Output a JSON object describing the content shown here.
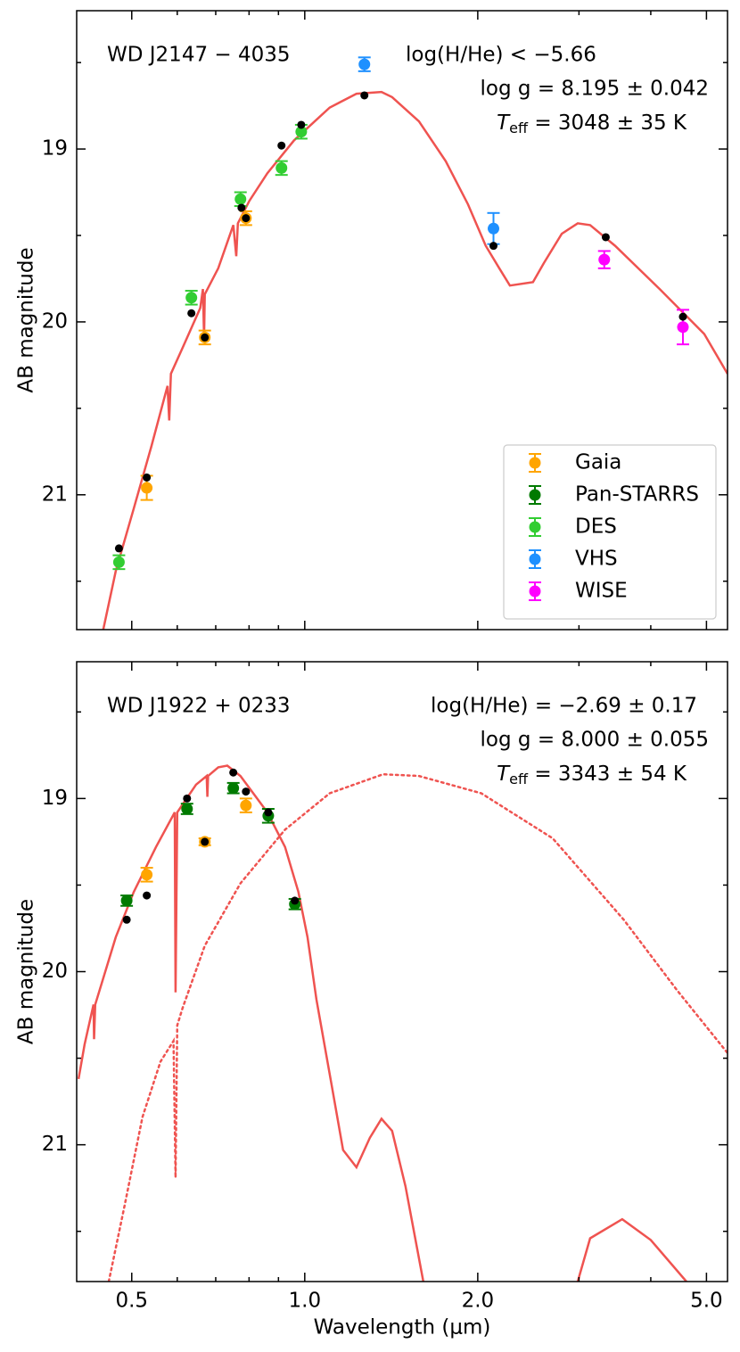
{
  "chart_data": [
    {
      "type": "scatter",
      "ylabel": "AB magnitude",
      "log_x": true,
      "xlim": [
        0.401,
        5.44
      ],
      "ylim": [
        21.78,
        18.2
      ],
      "xticks": [
        0.5,
        1,
        2,
        5
      ],
      "show_xtick_labels": false,
      "xminorticks": [
        0.6,
        0.7,
        0.8,
        0.9,
        3,
        4
      ],
      "yticks": [
        19,
        20,
        21
      ],
      "yminorticks": [
        18.5,
        19.5,
        20.5,
        21.5
      ],
      "annotations": {
        "name": "WD J2147 − 4035",
        "hhe": "log(H/He) < −5.66",
        "logg": "log g = 8.195 ± 0.042",
        "teff": {
          "symbol": "T",
          "subscript": "eff",
          "text": " = 3048 ± 35 K"
        }
      },
      "legend": "lower right",
      "series": [
        {
          "name": "Gaia",
          "color": "#ffa500",
          "x": [
            0.531,
            0.67,
            0.79
          ],
          "values": [
            20.96,
            20.09,
            19.4
          ],
          "errors": [
            0.07,
            0.04,
            0.04
          ]
        },
        {
          "name": "Pan-STARRS",
          "color": "#007a00",
          "x": [],
          "values": [],
          "errors": []
        },
        {
          "name": "DES",
          "color": "#32cd32",
          "x": [
            0.475,
            0.635,
            0.773,
            0.911,
            0.986
          ],
          "values": [
            21.39,
            19.86,
            19.29,
            19.11,
            18.9
          ],
          "errors": [
            0.04,
            0.04,
            0.04,
            0.04,
            0.04
          ]
        },
        {
          "name": "VHS",
          "color": "#1e90ff",
          "x": [
            1.27,
            2.13
          ],
          "values": [
            18.51,
            19.46
          ],
          "errors": [
            0.04,
            0.09
          ]
        },
        {
          "name": "WISE",
          "color": "#ff00ff",
          "x": [
            3.32,
            4.55
          ],
          "values": [
            19.64,
            20.03
          ],
          "errors": [
            0.05,
            0.1
          ]
        }
      ],
      "model_points": {
        "color": "#000000",
        "x": [
          0.475,
          0.531,
          0.635,
          0.67,
          0.776,
          0.79,
          0.911,
          0.986,
          1.27,
          2.13,
          3.34,
          4.55
        ],
        "values": [
          21.31,
          20.9,
          19.95,
          20.09,
          19.34,
          19.4,
          18.98,
          18.86,
          18.69,
          19.56,
          19.51,
          19.97
        ]
      },
      "model_curves": [
        {
          "color": "#ef5350",
          "style": "solid",
          "x": [
            0.446,
            0.469,
            0.504,
            0.541,
            0.577,
            0.581,
            0.585,
            0.613,
            0.658,
            0.665,
            0.668,
            0.67,
            0.707,
            0.751,
            0.76,
            0.765,
            0.801,
            0.861,
            0.958,
            1.105,
            1.23,
            1.36,
            1.419,
            1.58,
            1.759,
            1.923,
            2.065,
            2.18,
            2.275,
            2.495,
            2.606,
            2.8,
            2.985,
            3.137,
            3.467,
            4.145,
            4.955,
            5.44
          ],
          "values": [
            21.78,
            21.44,
            21.08,
            20.72,
            20.37,
            20.57,
            20.3,
            20.15,
            19.92,
            19.81,
            20.09,
            19.84,
            19.69,
            19.44,
            19.62,
            19.43,
            19.3,
            19.14,
            18.95,
            18.76,
            18.68,
            18.67,
            18.7,
            18.84,
            19.07,
            19.32,
            19.56,
            19.69,
            19.79,
            19.77,
            19.66,
            19.49,
            19.43,
            19.44,
            19.56,
            19.81,
            20.07,
            20.3
          ]
        }
      ]
    },
    {
      "type": "scatter",
      "xlabel": "Wavelength (μm)",
      "ylabel": "AB magnitude",
      "log_x": true,
      "xlim": [
        0.401,
        5.44
      ],
      "ylim": [
        21.79,
        18.21
      ],
      "xticks": [
        0.5,
        {
          "value": 1,
          "label": "1.0"
        },
        {
          "value": 2,
          "label": "2.0"
        },
        {
          "value": 5,
          "label": "5.0"
        }
      ],
      "show_xtick_labels": true,
      "xminorticks": [
        0.6,
        0.7,
        0.8,
        0.9,
        3,
        4
      ],
      "yticks": [
        19,
        20,
        21
      ],
      "yminorticks": [
        18.5,
        19.5,
        20.5,
        21.5
      ],
      "annotations": {
        "name": "WD J1922 + 0233",
        "hhe": "log(H/He) = −2.69 ± 0.17",
        "logg": "log g = 8.000 ± 0.055",
        "teff": {
          "symbol": "T",
          "subscript": "eff",
          "text": " = 3343 ± 54 K"
        }
      },
      "series": [
        {
          "name": "Gaia",
          "color": "#ffa500",
          "x": [
            0.531,
            0.67,
            0.79
          ],
          "values": [
            19.44,
            19.25,
            19.04
          ],
          "errors": [
            0.04,
            0.02,
            0.04
          ]
        },
        {
          "name": "Pan-STARRS",
          "color": "#007a00",
          "x": [
            0.49,
            0.624,
            0.751,
            0.864,
            0.961
          ],
          "values": [
            19.59,
            19.06,
            18.94,
            19.1,
            19.61
          ],
          "errors": [
            0.03,
            0.03,
            0.03,
            0.04,
            0.03
          ]
        }
      ],
      "model_points": {
        "color": "#000000",
        "x": [
          0.49,
          0.531,
          0.624,
          0.67,
          0.751,
          0.79,
          0.864,
          0.961
        ],
        "values": [
          19.7,
          19.56,
          19.0,
          19.25,
          18.85,
          18.96,
          19.08,
          19.59
        ]
      },
      "model_curves": [
        {
          "color": "#ef5350",
          "style": "solid",
          "x": [
            0.404,
            0.414,
            0.429,
            0.43,
            0.432,
            0.469,
            0.504,
            0.551,
            0.594,
            0.596,
            0.6,
            0.647,
            0.675,
            0.677,
            0.679,
            0.707,
            0.733,
            0.773,
            0.861,
            0.924,
            0.975,
            1.011,
            1.048,
            1.113,
            1.166,
            1.23,
            1.298,
            1.36,
            1.419,
            1.497,
            1.608,
            null,
            2.985,
            3.137,
            3.568,
            4.0,
            4.614
          ],
          "values": [
            20.62,
            20.42,
            20.19,
            20.39,
            20.19,
            19.8,
            19.54,
            19.28,
            19.08,
            20.12,
            19.08,
            18.92,
            18.87,
            18.99,
            18.87,
            18.82,
            18.81,
            18.87,
            19.08,
            19.28,
            19.54,
            19.8,
            20.16,
            20.65,
            21.03,
            21.13,
            20.96,
            20.85,
            20.92,
            21.24,
            21.79,
            null,
            21.79,
            21.54,
            21.43,
            21.55,
            21.79
          ]
        },
        {
          "color": "#ef5350",
          "style": "dotted",
          "x": [
            0.456,
            0.486,
            0.522,
            0.561,
            0.591,
            0.596,
            0.6,
            0.613,
            0.67,
            0.773,
            0.924,
            1.105,
            1.369,
            1.58,
            2.028,
            2.7,
            3.59,
            4.45,
            5.44
          ],
          "values": [
            21.79,
            21.35,
            20.84,
            20.52,
            20.4,
            21.19,
            20.31,
            20.21,
            19.85,
            19.49,
            19.18,
            18.97,
            18.86,
            18.87,
            18.97,
            19.23,
            19.7,
            20.11,
            20.47
          ]
        }
      ]
    }
  ]
}
